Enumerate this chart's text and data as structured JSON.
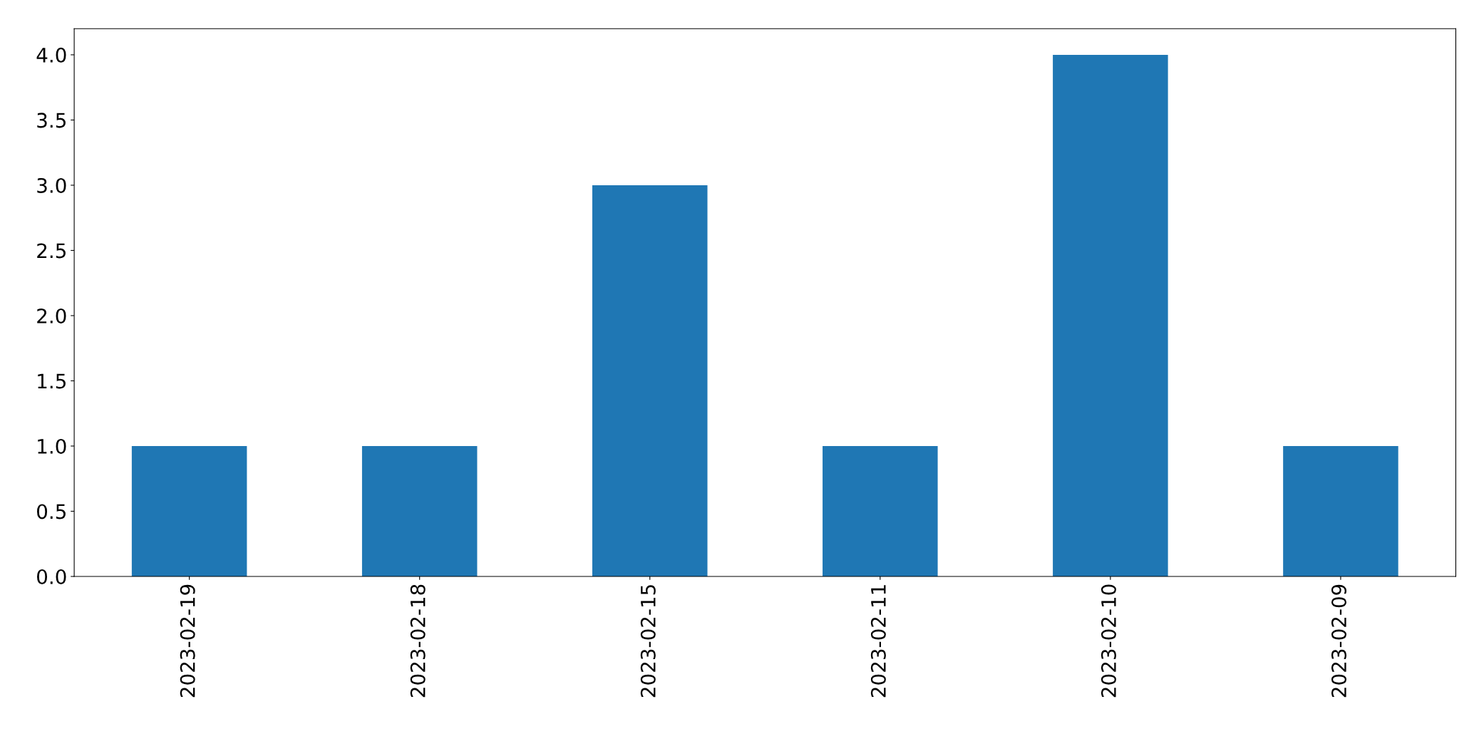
{
  "chart_data": {
    "type": "bar",
    "categories": [
      "2023-02-19",
      "2023-02-18",
      "2023-02-15",
      "2023-02-11",
      "2023-02-10",
      "2023-02-09"
    ],
    "values": [
      1,
      1,
      3,
      1,
      4,
      1
    ],
    "color": "#1f77b4",
    "ylim": [
      0,
      4.2
    ],
    "yticks": [
      {
        "value": 0,
        "label": "0.0"
      },
      {
        "value": 0.5,
        "label": "0.5"
      },
      {
        "value": 1,
        "label": "1.0"
      },
      {
        "value": 1.5,
        "label": "1.5"
      },
      {
        "value": 2,
        "label": "2.0"
      },
      {
        "value": 2.5,
        "label": "2.5"
      },
      {
        "value": 3,
        "label": "3.0"
      },
      {
        "value": 3.5,
        "label": "3.5"
      },
      {
        "value": 4,
        "label": "4.0"
      }
    ],
    "grid": false,
    "legend": false
  }
}
